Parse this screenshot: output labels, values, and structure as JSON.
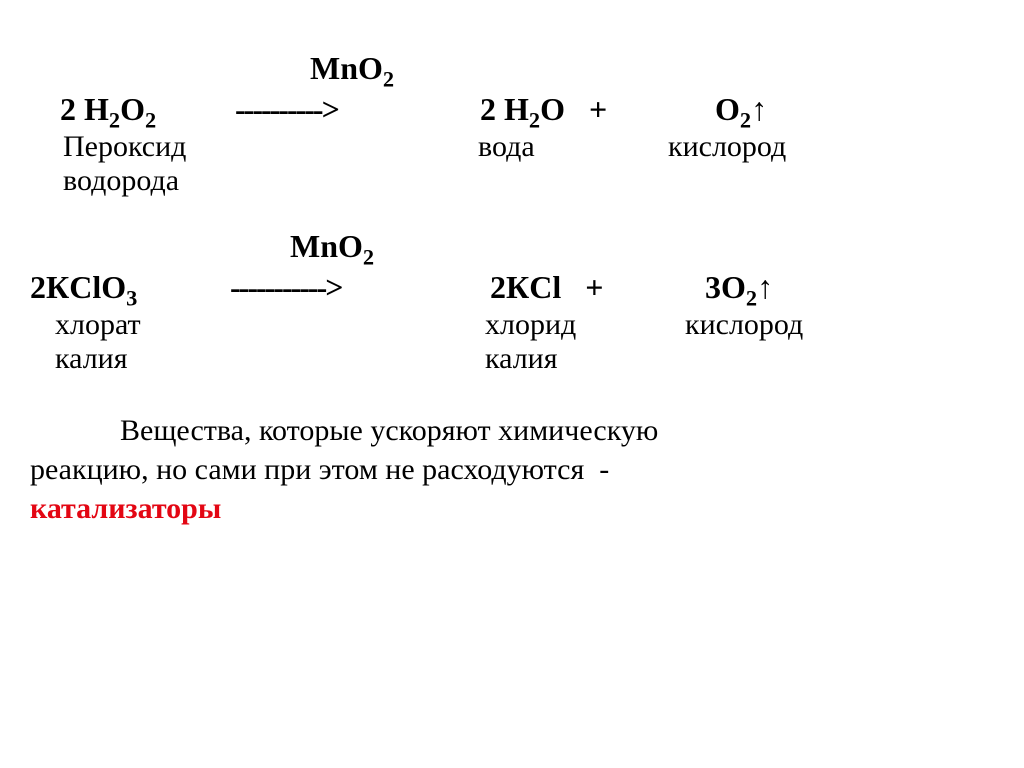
{
  "colors": {
    "text": "#000000",
    "highlight": "#e30613",
    "background": "#ffffff"
  },
  "font": {
    "family": "Times New Roman",
    "eq_size_pt": 24,
    "label_size_pt": 22,
    "statement_size_pt": 22
  },
  "eq1": {
    "catalyst": "MnO",
    "catalyst_sub": "2",
    "r_coef": "2",
    "r_formula_a": "H",
    "r_sub_a": "2",
    "r_formula_b": "O",
    "r_sub_b": "2",
    "arrow": "---------->",
    "p1_coef": "2",
    "p1_formula_a": "H",
    "p1_sub_a": "2",
    "p1_formula_b": "O",
    "plus": "+",
    "p2_formula": "O",
    "p2_sub": "2",
    "gas": "↑",
    "label_r1": "Пероксид",
    "label_r2": "водорода",
    "label_p1": "вода",
    "label_p2": "кислород"
  },
  "eq2": {
    "catalyst": "MnO",
    "catalyst_sub": "2",
    "r_coef": "2",
    "r_formula_a": "КClO",
    "r_sub_a": "3",
    "arrow": "----------->",
    "p1_coef": "2",
    "p1_formula": "КCl",
    "plus": "+",
    "p2_coef": "3",
    "p2_formula": "O",
    "p2_sub": "2",
    "gas": "↑",
    "label_r1": "хлорат",
    "label_r2": "калия",
    "label_p1a": "хлорид",
    "label_p1b": "калия",
    "label_p2": "кислород"
  },
  "statement": {
    "line1": "Вещества, которые ускоряют химическую",
    "line2": "реакцию, но сами при этом не расходуются",
    "dash": "-",
    "highlight": "катализаторы"
  }
}
